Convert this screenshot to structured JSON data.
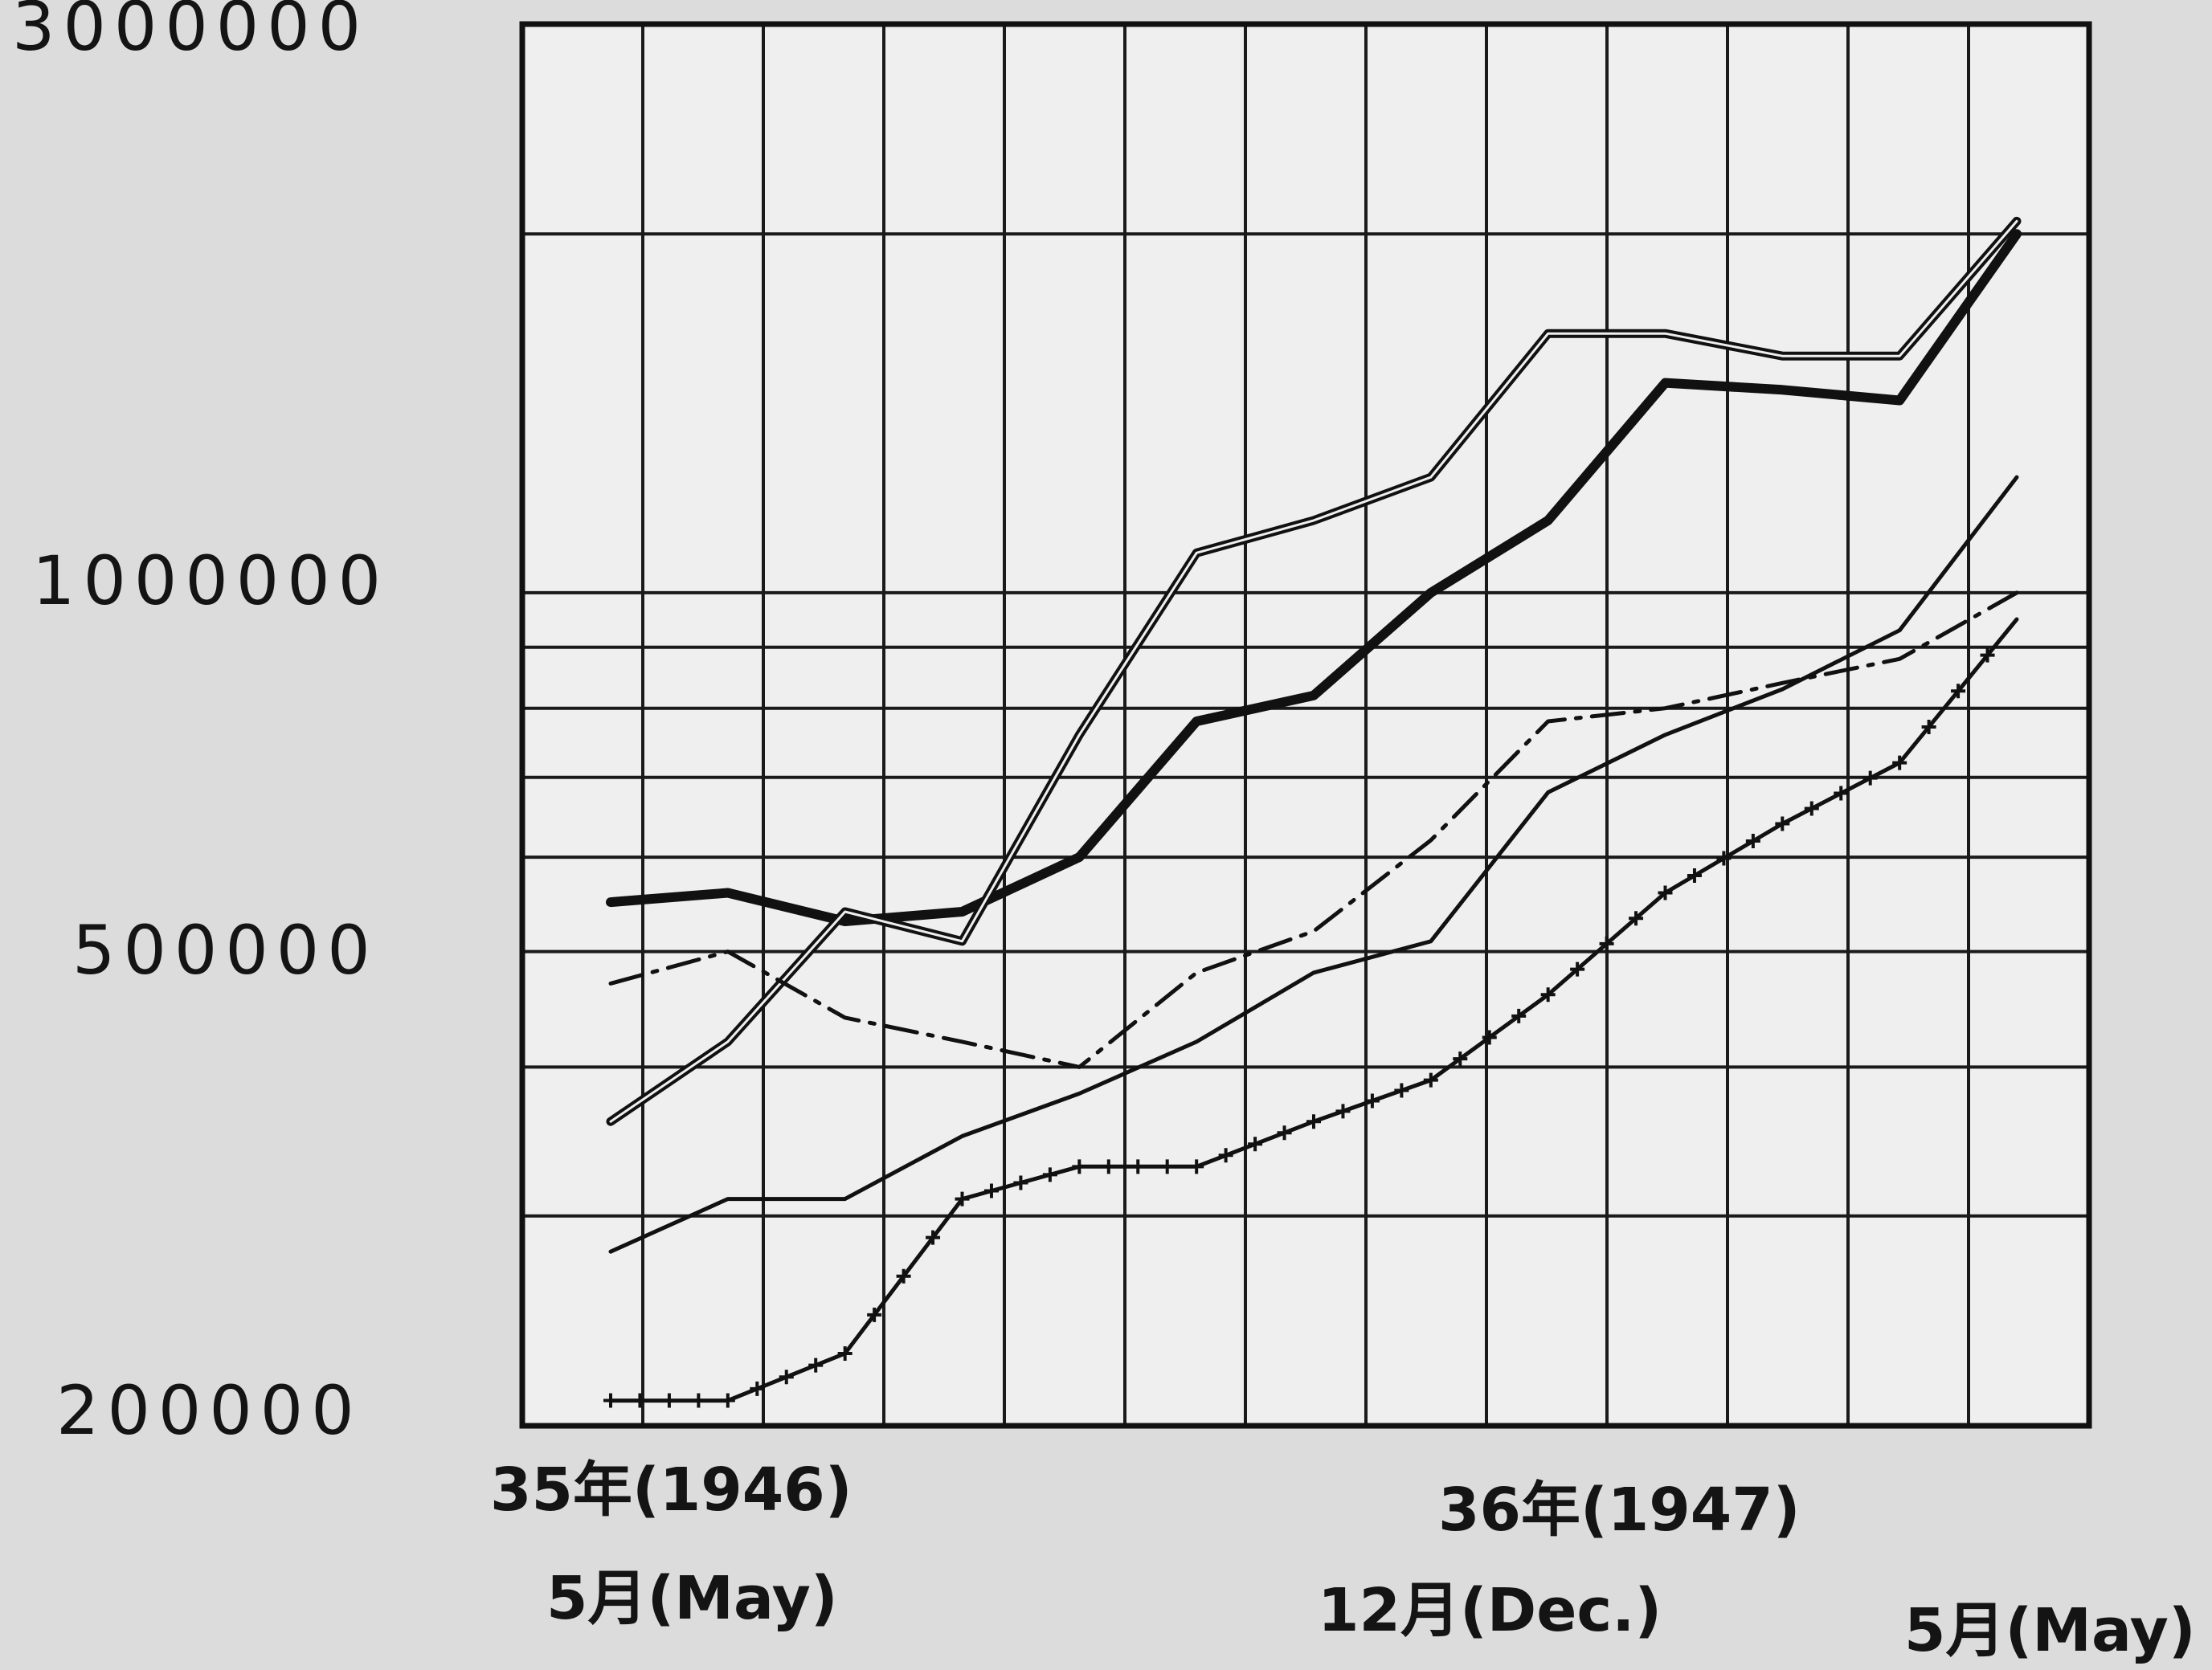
{
  "chart_data": {
    "type": "line",
    "title": "",
    "y_scale": "log",
    "ylim": [
      200000,
      3000000
    ],
    "y_tick_labels": [
      "3000000",
      "1000000",
      "500000",
      "200000"
    ],
    "x_tick_labels": [
      {
        "year": "35年(1946)",
        "month": "5月(May)"
      },
      {
        "year": "36年(1947)",
        "month": "12月(Dec.)"
      },
      {
        "year": "",
        "month": "5月(May)"
      }
    ],
    "x": [
      "1946-05",
      "1946-06",
      "1946-07",
      "1946-08",
      "1946-09",
      "1946-10",
      "1946-11",
      "1946-12",
      "1947-01",
      "1947-02",
      "1947-03",
      "1947-04",
      "1947-05"
    ],
    "grid": true,
    "legend": "none",
    "colors": {
      "ink": "#111111",
      "background": "#dcdcdc",
      "paper": "#f2f2f2"
    },
    "series": [
      {
        "style": "thick solid",
        "values": [
          550000,
          560000,
          530000,
          540000,
          600000,
          780000,
          820000,
          1000000,
          1150000,
          1500000,
          1480000,
          1450000,
          2000000
        ]
      },
      {
        "style": "double thin solid",
        "values": [
          360000,
          420000,
          540000,
          510000,
          760000,
          1080000,
          1150000,
          1250000,
          1650000,
          1650000,
          1580000,
          1580000,
          2050000
        ]
      },
      {
        "style": "dash-dot",
        "values": [
          470000,
          500000,
          440000,
          420000,
          400000,
          480000,
          520000,
          620000,
          780000,
          800000,
          840000,
          880000,
          1000000
        ]
      },
      {
        "style": "thin solid",
        "values": [
          280000,
          310000,
          310000,
          350000,
          380000,
          420000,
          480000,
          510000,
          680000,
          760000,
          830000,
          930000,
          1250000
        ]
      },
      {
        "style": "solid with cross marks",
        "values": [
          210000,
          210000,
          230000,
          310000,
          330000,
          330000,
          360000,
          390000,
          460000,
          560000,
          640000,
          720000,
          950000
        ]
      }
    ]
  }
}
